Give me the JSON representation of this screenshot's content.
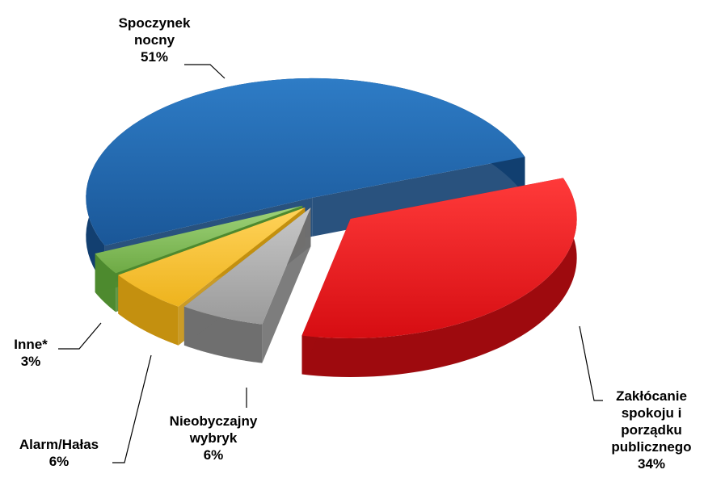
{
  "chart_data": {
    "type": "pie",
    "style": "3d-exploded",
    "slices": [
      {
        "label_lines": [
          "Zakłócanie",
          "spokoju i",
          "porządku",
          "publicznego"
        ],
        "value": 34,
        "value_label": "34%",
        "color": "#e8141b",
        "side_color": "#9e0a0e"
      },
      {
        "label_lines": [
          "Nieobyczajny",
          "wybryk"
        ],
        "value": 6,
        "value_label": "6%",
        "color": "#a6a6a6",
        "side_color": "#6f6f6f"
      },
      {
        "label_lines": [
          "Alarm/Hałas"
        ],
        "value": 6,
        "value_label": "6%",
        "color": "#f5bf2a",
        "side_color": "#c4900f"
      },
      {
        "label_lines": [
          "Inne*"
        ],
        "value": 3,
        "value_label": "3%",
        "color": "#7cbb53",
        "side_color": "#4e8a2f"
      },
      {
        "label_lines": [
          "Spoczynek",
          "nocny"
        ],
        "value": 51,
        "value_label": "51%",
        "color": "#1f64aa",
        "side_color": "#123f70"
      }
    ]
  }
}
